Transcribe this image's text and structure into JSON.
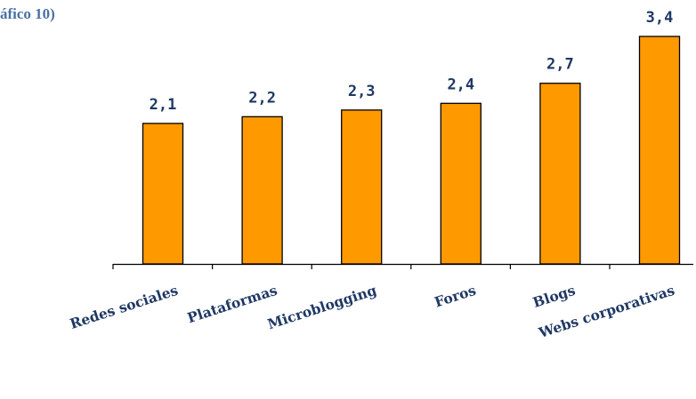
{
  "chart_data": {
    "type": "bar",
    "title": "áfico 10)",
    "categories": [
      "Redes sociales",
      "Plataformas",
      "Microblogging",
      "Foros",
      "Blogs",
      "Webs corporativas"
    ],
    "values": [
      2.1,
      2.2,
      2.3,
      2.4,
      2.7,
      3.4
    ],
    "data_labels": [
      "2,1",
      "2,2",
      "2,3",
      "2,4",
      "2,7",
      "3,4"
    ],
    "xlabel": "",
    "ylabel": "",
    "ylim": [
      0,
      3.4
    ],
    "grid": false,
    "legend": "none",
    "colors": {
      "bar_fill": "#FF9900",
      "bar_stroke": "#000000",
      "label_text": "#1F3864",
      "title_text": "#4A6FA5",
      "axis": "#000000"
    }
  }
}
